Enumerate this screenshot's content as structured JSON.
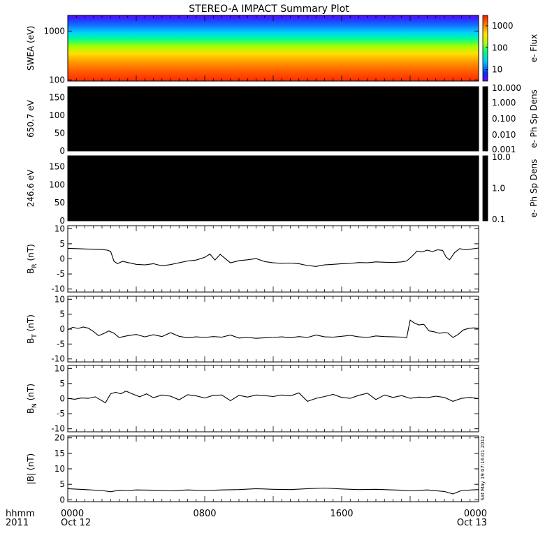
{
  "chart_data": {
    "title": "STEREO-A IMPACT Summary Plot",
    "timestamp": "Sat May 19 07:16:01 2012",
    "x_axis": {
      "row_label_top": "hhmm",
      "row_label_bottom": "2011",
      "ticks": [
        {
          "hours": 0,
          "time": "0000",
          "date": "Oct 12"
        },
        {
          "hours": 8,
          "time": "0800",
          "date": ""
        },
        {
          "hours": 16,
          "time": "1600",
          "date": ""
        },
        {
          "hours": 24,
          "time": "0000",
          "date": "Oct 13"
        }
      ],
      "range_hours": [
        0,
        24
      ]
    },
    "panels": [
      {
        "id": "swea",
        "type": "heatmap",
        "ylabel": "SWEA (eV)",
        "yscale": "log",
        "ylim": [
          95,
          2100
        ],
        "yticks": [
          {
            "v": 100,
            "label": "100"
          },
          {
            "v": 1000,
            "label": "1000"
          }
        ],
        "colorbar": {
          "label": "e- Flux",
          "scale": "log",
          "range": [
            3,
            3000
          ],
          "ticks": [
            {
              "v": 10,
              "label": "10"
            },
            {
              "v": 100,
              "label": "100"
            },
            {
              "v": 1000,
              "label": "1000"
            }
          ]
        }
      },
      {
        "id": "pad650",
        "type": "heatmap",
        "ylabel": "650.7 eV",
        "ylim": [
          0,
          180
        ],
        "yticks": [
          {
            "v": 0,
            "label": "0"
          },
          {
            "v": 50,
            "label": "50"
          },
          {
            "v": 100,
            "label": "100"
          },
          {
            "v": 150,
            "label": "150"
          }
        ],
        "fill": "#000000",
        "colorbar": {
          "label": "e- Ph Sp Dens",
          "scale": "log",
          "range": [
            0.001,
            10
          ],
          "ticks": [
            {
              "v": 10,
              "label": "10.000"
            },
            {
              "v": 1,
              "label": "1.000"
            },
            {
              "v": 0.1,
              "label": "0.100"
            },
            {
              "v": 0.01,
              "label": "0.010"
            },
            {
              "v": 0.001,
              "label": "0.001"
            }
          ]
        }
      },
      {
        "id": "pad246",
        "type": "heatmap",
        "ylabel": "246.6 eV",
        "ylim": [
          0,
          180
        ],
        "yticks": [
          {
            "v": 0,
            "label": "0"
          },
          {
            "v": 50,
            "label": "50"
          },
          {
            "v": 100,
            "label": "100"
          },
          {
            "v": 150,
            "label": "150"
          }
        ],
        "fill": "#000000",
        "colorbar": {
          "label": "e- Ph Sp Dens",
          "scale": "log",
          "range": [
            0.1,
            10
          ],
          "ticks": [
            {
              "v": 10,
              "label": "10.0"
            },
            {
              "v": 1,
              "label": "1.0"
            },
            {
              "v": 0.1,
              "label": "0.1"
            }
          ]
        }
      },
      {
        "id": "br",
        "type": "line",
        "ylabel": "B",
        "ylabel_sub": "R",
        "ylabel_unit": "(nT)",
        "ylim": [
          -11,
          11
        ],
        "yticks": [
          {
            "v": -10,
            "label": "-10"
          },
          {
            "v": -5,
            "label": "-5"
          },
          {
            "v": 0,
            "label": "0"
          },
          {
            "v": 5,
            "label": "5"
          },
          {
            "v": 10,
            "label": "10"
          }
        ],
        "x": [
          0,
          0.5,
          1,
          1.5,
          2,
          2.3,
          2.5,
          2.7,
          2.9,
          3.2,
          3.5,
          4,
          4.5,
          5,
          5.5,
          6,
          6.5,
          7,
          7.5,
          8,
          8.3,
          8.6,
          8.9,
          9.2,
          9.5,
          10,
          10.5,
          11,
          11.5,
          12,
          12.5,
          13,
          13.5,
          14,
          14.5,
          15,
          15.5,
          16,
          16.5,
          17,
          17.5,
          18,
          18.5,
          19,
          19.5,
          19.8,
          20.1,
          20.4,
          20.7,
          21,
          21.3,
          21.6,
          21.9,
          22.1,
          22.3,
          22.6,
          22.9,
          23.2,
          23.5,
          24
        ],
        "y": [
          3.5,
          3.4,
          3.3,
          3.2,
          3.1,
          2.9,
          2.5,
          -0.8,
          -1.6,
          -0.8,
          -1.2,
          -1.8,
          -2.0,
          -1.6,
          -2.3,
          -1.9,
          -1.3,
          -0.7,
          -0.4,
          0.5,
          1.6,
          -0.4,
          1.5,
          0.1,
          -1.3,
          -0.6,
          -0.3,
          0.1,
          -0.9,
          -1.3,
          -1.5,
          -1.4,
          -1.6,
          -2.2,
          -2.5,
          -2.0,
          -1.8,
          -1.6,
          -1.5,
          -1.2,
          -1.3,
          -1.0,
          -1.1,
          -1.2,
          -1.0,
          -0.7,
          0.8,
          2.6,
          2.3,
          2.9,
          2.4,
          3.0,
          2.8,
          0.6,
          -0.3,
          2.1,
          3.4,
          3.0,
          3.2,
          3.6
        ]
      },
      {
        "id": "bt",
        "type": "line",
        "ylabel": "B",
        "ylabel_sub": "T",
        "ylabel_unit": "(nT)",
        "ylim": [
          -11,
          11
        ],
        "yticks": [
          {
            "v": -10,
            "label": "-10"
          },
          {
            "v": -5,
            "label": "-5"
          },
          {
            "v": 0,
            "label": "0"
          },
          {
            "v": 5,
            "label": "5"
          },
          {
            "v": 10,
            "label": "10"
          }
        ],
        "x": [
          0,
          0.3,
          0.6,
          0.9,
          1.2,
          1.5,
          1.8,
          2.1,
          2.4,
          2.7,
          3.0,
          3.5,
          4,
          4.5,
          5,
          5.5,
          6,
          6.5,
          7,
          7.5,
          8,
          8.5,
          9,
          9.5,
          10,
          10.5,
          11,
          11.5,
          12,
          12.5,
          13,
          13.5,
          14,
          14.5,
          15,
          15.5,
          16,
          16.5,
          17,
          17.5,
          18,
          18.5,
          19,
          19.5,
          19.8,
          20.0,
          20.2,
          20.5,
          20.8,
          21.1,
          21.4,
          21.7,
          22.0,
          22.2,
          22.5,
          22.8,
          23.1,
          23.4,
          23.7,
          24
        ],
        "y": [
          -0.2,
          0.6,
          0.2,
          0.7,
          0.3,
          -0.8,
          -2.2,
          -1.5,
          -0.6,
          -1.4,
          -2.8,
          -2.2,
          -1.8,
          -2.6,
          -1.9,
          -2.5,
          -1.2,
          -2.4,
          -2.9,
          -2.6,
          -2.8,
          -2.5,
          -2.7,
          -2.0,
          -3.0,
          -2.8,
          -3.1,
          -2.9,
          -2.8,
          -2.6,
          -2.9,
          -2.5,
          -2.8,
          -2.0,
          -2.6,
          -2.7,
          -2.4,
          -2.1,
          -2.6,
          -2.8,
          -2.3,
          -2.5,
          -2.6,
          -2.7,
          -2.8,
          3.0,
          2.2,
          1.4,
          1.6,
          -0.6,
          -0.9,
          -1.4,
          -1.2,
          -1.3,
          -2.8,
          -1.8,
          -0.3,
          0.2,
          0.4,
          0.3
        ]
      },
      {
        "id": "bn",
        "type": "line",
        "ylabel": "B",
        "ylabel_sub": "N",
        "ylabel_unit": "(nT)",
        "ylim": [
          -11,
          11
        ],
        "yticks": [
          {
            "v": -10,
            "label": "-10"
          },
          {
            "v": -5,
            "label": "-5"
          },
          {
            "v": 0,
            "label": "0"
          },
          {
            "v": 5,
            "label": "5"
          },
          {
            "v": 10,
            "label": "10"
          }
        ],
        "x": [
          0,
          0.4,
          0.8,
          1.2,
          1.6,
          1.9,
          2.2,
          2.5,
          2.8,
          3.1,
          3.4,
          3.8,
          4.2,
          4.6,
          5,
          5.5,
          6,
          6.5,
          7,
          7.5,
          8,
          8.5,
          9,
          9.5,
          10,
          10.5,
          11,
          11.5,
          12,
          12.5,
          13,
          13.5,
          14,
          14.5,
          15,
          15.5,
          16,
          16.5,
          17,
          17.5,
          18,
          18.5,
          19,
          19.5,
          20,
          20.5,
          21,
          21.5,
          22,
          22.5,
          23,
          23.5,
          24
        ],
        "y": [
          0.1,
          -0.2,
          0.2,
          0.1,
          0.6,
          -0.4,
          -1.4,
          1.6,
          2.1,
          1.6,
          2.5,
          1.5,
          0.6,
          1.6,
          0.3,
          1.2,
          0.8,
          -0.4,
          1.3,
          0.9,
          0.2,
          1.1,
          1.2,
          -0.7,
          1.1,
          0.5,
          1.2,
          1.0,
          0.7,
          1.2,
          0.9,
          1.9,
          -0.9,
          0.1,
          0.7,
          1.4,
          0.4,
          0.1,
          1.1,
          1.8,
          -0.3,
          1.2,
          0.4,
          1.0,
          0.1,
          0.5,
          0.3,
          0.8,
          0.4,
          -0.9,
          0.1,
          0.4,
          0.0
        ]
      },
      {
        "id": "bmag",
        "type": "line",
        "ylabel": "|B| (nT)",
        "ylim": [
          -0.6,
          20.6
        ],
        "yticks": [
          {
            "v": 0,
            "label": "0"
          },
          {
            "v": 5,
            "label": "5"
          },
          {
            "v": 10,
            "label": "10"
          },
          {
            "v": 15,
            "label": "15"
          },
          {
            "v": 20,
            "label": "20"
          }
        ],
        "x": [
          0,
          1,
          2,
          2.5,
          3,
          3.5,
          4,
          5,
          6,
          7,
          8,
          9,
          10,
          11,
          12,
          13,
          14,
          15,
          16,
          17,
          18,
          19,
          19.5,
          20,
          21,
          22,
          22.5,
          23,
          24
        ],
        "y": [
          3.6,
          3.3,
          3.0,
          2.6,
          3.1,
          3.0,
          3.2,
          3.1,
          2.9,
          3.2,
          3.0,
          3.2,
          3.3,
          3.6,
          3.4,
          3.3,
          3.6,
          3.8,
          3.5,
          3.3,
          3.4,
          3.2,
          3.1,
          2.9,
          3.2,
          2.7,
          1.9,
          3.0,
          3.3
        ]
      }
    ]
  }
}
